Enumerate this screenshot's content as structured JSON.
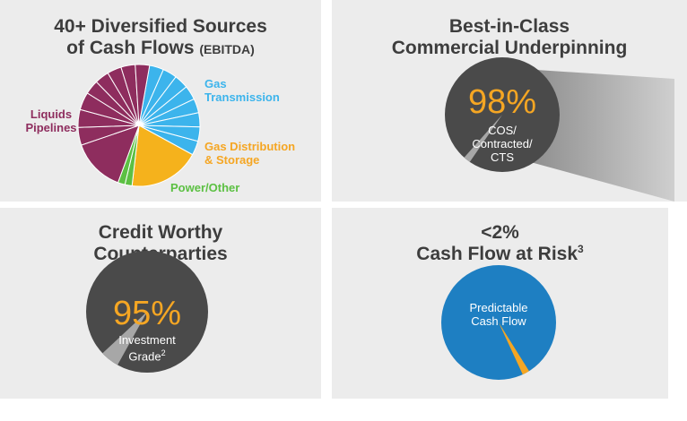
{
  "panels": {
    "sources": {
      "title_line1": "40+ Diversified Sources",
      "title_line2": "of Cash Flows",
      "title_suffix": "(EBITDA)",
      "labels": {
        "gas_transmission": "Gas Transmission",
        "liquids_pipelines": "Liquids Pipelines",
        "gas_distribution": "Gas Distribution & Storage",
        "power_other": "Power/Other"
      }
    },
    "commercial": {
      "title_line1": "Best-in-Class",
      "title_line2": "Commercial Underpinning",
      "percent": "98%",
      "caption_line1": "COS/",
      "caption_line2": "Contracted/",
      "caption_line3": "CTS"
    },
    "credit": {
      "title_line1": "Credit Worthy",
      "title_line2": "Counterparties",
      "percent": "95%",
      "caption_line1": "Investment",
      "caption_line2": "Grade",
      "caption_sup": "2"
    },
    "risk": {
      "title_line1": "<2%",
      "title_line2": "Cash Flow at Risk",
      "title_sup": "3",
      "caption_line1": "Predictable",
      "caption_line2": "Cash Flow"
    }
  },
  "colors": {
    "panel_bg": "#ececec",
    "title_text": "#3d3d3d",
    "liquids": "#8e2d5e",
    "gas_transmission": "#3cb4ec",
    "gas_distribution": "#f5b21c",
    "power_other": "#5cc043",
    "dark_circle": "#4a4a4a",
    "accent_orange": "#f5a623",
    "blue_circle": "#1e7fc2",
    "wedge_gray": "#a7a7a7"
  },
  "chart_data": [
    {
      "type": "pie",
      "title": "40+ Diversified Sources of Cash Flows (EBITDA)",
      "series": [
        {
          "name": "Gas Transmission",
          "values": [
            4,
            4,
            4,
            4,
            4,
            4,
            4,
            4
          ]
        },
        {
          "name": "Gas Distribution & Storage",
          "values": [
            20
          ]
        },
        {
          "name": "Power/Other",
          "values": [
            2,
            2
          ]
        },
        {
          "name": "Liquids Pipelines",
          "values": [
            15,
            5,
            5,
            5,
            4,
            4,
            4,
            4,
            4
          ]
        }
      ]
    },
    {
      "type": "pie",
      "title": "Best-in-Class Commercial Underpinning",
      "values": [
        98,
        2
      ],
      "labels": [
        "COS/ Contracted/ CTS",
        ""
      ]
    },
    {
      "type": "pie",
      "title": "Credit Worthy Counterparties",
      "values": [
        95,
        5
      ],
      "labels": [
        "Investment Grade",
        ""
      ]
    },
    {
      "type": "pie",
      "title": "<2% Cash Flow at Risk",
      "values": [
        98,
        2
      ],
      "labels": [
        "Predictable Cash Flow",
        ""
      ]
    }
  ]
}
